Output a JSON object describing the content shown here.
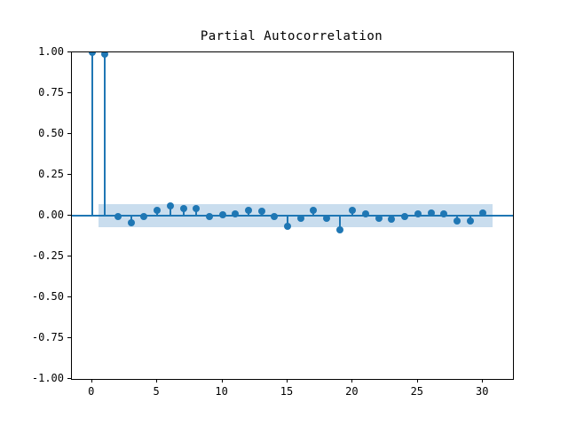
{
  "chart_data": {
    "type": "stem",
    "title": "Partial Autocorrelation",
    "xlabel": "",
    "ylabel": "",
    "x": [
      0,
      1,
      2,
      3,
      4,
      5,
      6,
      7,
      8,
      9,
      10,
      11,
      12,
      13,
      14,
      15,
      16,
      17,
      18,
      19,
      20,
      21,
      22,
      23,
      24,
      25,
      26,
      27,
      28,
      29,
      30
    ],
    "values": [
      1.0,
      0.99,
      -0.005,
      -0.042,
      -0.004,
      0.03,
      0.06,
      0.042,
      0.042,
      -0.006,
      0.007,
      0.012,
      0.032,
      0.026,
      -0.003,
      -0.067,
      -0.014,
      0.032,
      -0.016,
      -0.088,
      0.032,
      0.012,
      -0.017,
      -0.024,
      -0.005,
      0.012,
      0.016,
      0.01,
      -0.03,
      -0.034,
      0.018
    ],
    "xlim": [
      -1.55,
      32.3
    ],
    "ylim": [
      -1.0,
      1.0
    ],
    "x_ticks": {
      "values": [
        0,
        5,
        10,
        15,
        20,
        25,
        30
      ],
      "labels": [
        "0",
        "5",
        "10",
        "15",
        "20",
        "25",
        "30"
      ]
    },
    "y_ticks": {
      "values": [
        1.0,
        0.75,
        0.5,
        0.25,
        0.0,
        -0.25,
        -0.5,
        -0.75,
        -1.0
      ],
      "labels": [
        "1.00",
        "0.75",
        "0.50",
        "0.25",
        "0.00",
        "-0.25",
        "-0.50",
        "-0.75",
        "-1.00"
      ]
    },
    "confidence_band": {
      "lower": -0.0725,
      "upper": 0.0725,
      "x_start": 0.5,
      "x_end": 30.75
    },
    "baseline_value": 0.0,
    "grid": false,
    "legend": "none",
    "colors": {
      "stem": "#1f77b4",
      "marker": "#1f77b4",
      "baseline": "#1f77b4",
      "band": "#c9ddee",
      "spine": "#000000",
      "text": "#000000",
      "background": "#ffffff"
    }
  }
}
